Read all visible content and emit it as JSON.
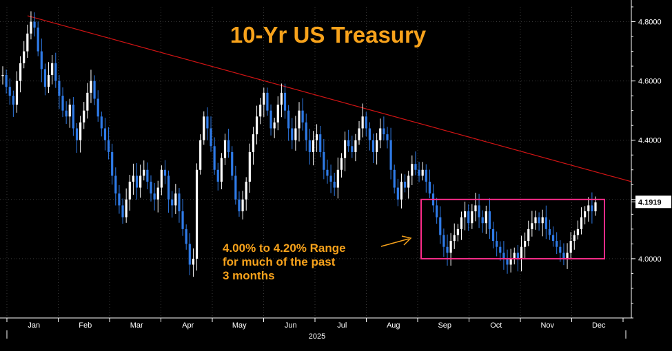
{
  "chart_data": {
    "type": "candlestick",
    "title": "10-Yr US Treasury",
    "year_label": "2025",
    "x_ticks": [
      "Jan",
      "Feb",
      "Mar",
      "Apr",
      "May",
      "Jun",
      "Jul",
      "Aug",
      "Sep",
      "Oct",
      "Nov",
      "Dec"
    ],
    "y_ticks": [
      "4.0000",
      "4.2000",
      "4.4000",
      "4.6000",
      "4.8000"
    ],
    "ylim": [
      3.8,
      4.85
    ],
    "last_value": "4.1919",
    "annotation": {
      "lines": [
        "4.00% to 4.20% Range",
        "for much of the past",
        "3 months"
      ]
    },
    "range_box": {
      "low": 4.0,
      "high": 4.2,
      "start": "Sep",
      "end": "Dec"
    },
    "trendline": {
      "start": 4.82,
      "end": 4.26
    },
    "series_close": [
      4.62,
      4.58,
      4.55,
      4.52,
      4.6,
      4.66,
      4.7,
      4.76,
      4.8,
      4.78,
      4.7,
      4.64,
      4.58,
      4.62,
      4.66,
      4.6,
      4.55,
      4.5,
      4.48,
      4.52,
      4.44,
      4.4,
      4.46,
      4.5,
      4.56,
      4.6,
      4.54,
      4.48,
      4.44,
      4.4,
      4.36,
      4.28,
      4.22,
      4.18,
      4.14,
      4.2,
      4.26,
      4.28,
      4.24,
      4.28,
      4.3,
      4.26,
      4.22,
      4.2,
      4.24,
      4.3,
      4.28,
      4.2,
      4.18,
      4.22,
      4.16,
      4.1,
      4.05,
      3.98,
      4.0,
      4.3,
      4.4,
      4.48,
      4.44,
      4.38,
      4.3,
      4.26,
      4.34,
      4.4,
      4.36,
      4.28,
      4.2,
      4.16,
      4.2,
      4.26,
      4.36,
      4.42,
      4.48,
      4.52,
      4.56,
      4.5,
      4.44,
      4.46,
      4.52,
      4.56,
      4.5,
      4.44,
      4.4,
      4.44,
      4.5,
      4.46,
      4.4,
      4.36,
      4.4,
      4.42,
      4.36,
      4.3,
      4.28,
      4.26,
      4.24,
      4.3,
      4.34,
      4.4,
      4.38,
      4.36,
      4.4,
      4.44,
      4.48,
      4.44,
      4.4,
      4.36,
      4.4,
      4.44,
      4.42,
      4.4,
      4.3,
      4.24,
      4.2,
      4.26,
      4.24,
      4.28,
      4.32,
      4.3,
      4.28,
      4.3,
      4.26,
      4.22,
      4.18,
      4.14,
      4.08,
      4.04,
      4.02,
      4.06,
      4.08,
      4.1,
      4.14,
      4.16,
      4.12,
      4.16,
      4.18,
      4.14,
      4.12,
      4.16,
      4.1,
      4.06,
      4.04,
      4.02,
      4.0,
      3.98,
      4.0,
      4.02,
      4.0,
      4.04,
      4.06,
      4.1,
      4.12,
      4.14,
      4.12,
      4.14,
      4.1,
      4.08,
      4.06,
      4.04,
      4.02,
      4.0,
      4.02,
      4.06,
      4.08,
      4.1,
      4.14,
      4.16,
      4.18,
      4.16,
      4.19
    ]
  },
  "colors": {
    "background": "#000000",
    "title": "#f7a21b",
    "annotation": "#f7a21b",
    "up": "#ffffff",
    "down": "#2f7be8",
    "trendline": "#d11414",
    "range_box": "#ff2c8a",
    "axis": "#ffffff",
    "grid": "#3a3a3a",
    "last_value_bg": "#ffffff",
    "last_value_text": "#000000"
  }
}
